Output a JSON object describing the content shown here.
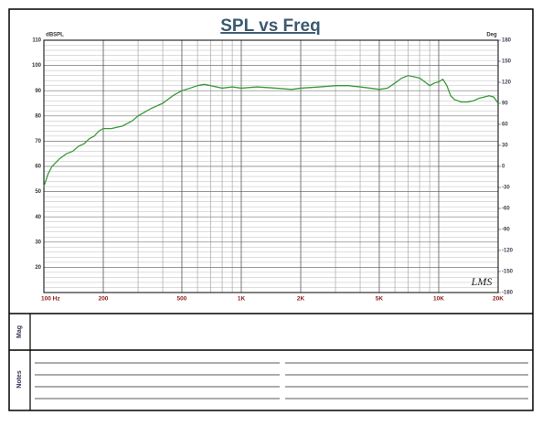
{
  "chart_data": {
    "type": "line",
    "title": "SPL vs Freq",
    "y_label": "dBSPL",
    "y2_label": "Deg",
    "watermark": "LMS",
    "x": [
      100,
      105,
      110,
      120,
      130,
      140,
      150,
      160,
      170,
      180,
      190,
      200,
      220,
      250,
      280,
      300,
      350,
      400,
      450,
      500,
      550,
      600,
      650,
      700,
      750,
      800,
      900,
      1000,
      1200,
      1500,
      1800,
      2000,
      2500,
      3000,
      3500,
      4000,
      4500,
      5000,
      5500,
      6000,
      6500,
      7000,
      7500,
      8000,
      8500,
      9000,
      9500,
      10000,
      10500,
      11000,
      11500,
      12000,
      13000,
      14000,
      15000,
      16000,
      17000,
      18000,
      19000,
      20000
    ],
    "values": [
      52,
      57,
      60,
      63,
      65,
      66,
      68,
      69,
      71,
      72,
      74,
      75,
      75,
      76,
      78,
      80,
      83,
      85,
      88,
      90,
      91,
      92,
      92.5,
      92,
      91.5,
      91,
      91.5,
      91,
      91.5,
      91,
      90.5,
      91,
      91.5,
      92,
      92,
      91.5,
      91,
      90.5,
      91,
      93,
      95,
      96,
      95.5,
      95,
      93.5,
      92,
      93,
      93.5,
      94.5,
      92,
      88,
      86.5,
      85.5,
      85.5,
      86,
      87,
      87.5,
      88,
      87.5,
      85
    ],
    "color": "#3a9a3a",
    "log_x": true,
    "grid": true,
    "xlim": [
      100,
      20000
    ],
    "xticks": [
      {
        "value": 100,
        "label": "100 Hz"
      },
      200,
      500,
      {
        "value": 1000,
        "label": "1K"
      },
      {
        "value": 2000,
        "label": "2K"
      },
      {
        "value": 5000,
        "label": "5K"
      },
      {
        "value": 10000,
        "label": "10K"
      },
      {
        "value": 20000,
        "label": "20K"
      }
    ],
    "xminor": [
      300,
      400,
      600,
      700,
      800,
      900,
      3000,
      4000,
      6000,
      7000,
      8000,
      9000
    ],
    "ylim": [
      10,
      110
    ],
    "yticks": [
      20,
      30,
      40,
      50,
      60,
      70,
      80,
      90,
      100,
      110
    ],
    "yminor": [
      12,
      14,
      16,
      18,
      22,
      24,
      26,
      28,
      32,
      34,
      36,
      38,
      42,
      44,
      46,
      48,
      52,
      54,
      56,
      58,
      62,
      64,
      66,
      68,
      72,
      74,
      76,
      78,
      82,
      84,
      86,
      88,
      92,
      94,
      96,
      98,
      102,
      104,
      106,
      108
    ],
    "y2lim": [
      -180,
      180
    ],
    "y2ticks": [
      180,
      150,
      120,
      90,
      60,
      30,
      0,
      -30,
      -60,
      -90,
      -120,
      -150,
      -180
    ]
  },
  "panels": {
    "mag_label": "Mag",
    "notes_label": "Notes"
  }
}
